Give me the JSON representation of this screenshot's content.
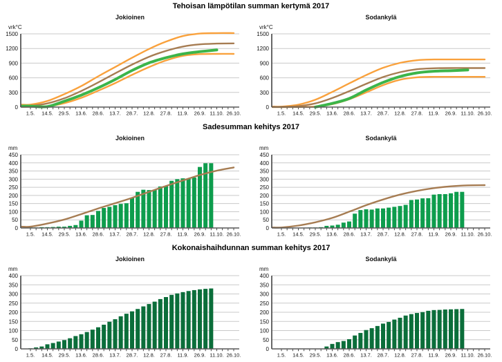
{
  "style": {
    "background": "#ffffff",
    "grid": "#c9c9c9",
    "axis": "#565656",
    "tick": "#333333",
    "text": "#111111",
    "orange": "#f9a13c",
    "brown": "#a67c52",
    "green_2017": "#3cb54a",
    "rain_bar": "#0e9d4d",
    "evaporation_bar": "#0b6e3a"
  },
  "chart_data": [
    {
      "type": "line",
      "title": "Tehoisan lämpötilan summan kertymä 2017",
      "unit": "vrk°C",
      "ylim": [
        0,
        1500
      ],
      "ytick_step": 300,
      "grid": true,
      "legend": "none",
      "x_tick_labels": [
        "1.5.",
        "14.5.",
        "29.5.",
        "13.6.",
        "28.6.",
        "13.7.",
        "28.7.",
        "12.8.",
        "27.8.",
        "11.9.",
        "26.9.",
        "11.10.",
        "26.10."
      ],
      "panels": [
        {
          "station": "Jokioinen",
          "series": [
            {
              "name": "maximum",
              "color": "#f9a13c",
              "width": 2.4,
              "values": [
                50,
                125,
                265,
                430,
                630,
                820,
                1010,
                1190,
                1340,
                1455,
                1505,
                1515,
                1515
              ]
            },
            {
              "name": "mean",
              "color": "#a67c52",
              "width": 2.4,
              "values": [
                25,
                75,
                180,
                330,
                505,
                690,
                870,
                1030,
                1150,
                1240,
                1285,
                1300,
                1305
              ]
            },
            {
              "name": "minimum",
              "color": "#f9a13c",
              "width": 2.4,
              "values": [
                5,
                15,
                80,
                190,
                335,
                490,
                660,
                820,
                955,
                1050,
                1085,
                1090,
                1090
              ]
            },
            {
              "name": "year-2017",
              "color": "#3cb54a",
              "width": 4,
              "values": [
                20,
                10,
                120,
                245,
                395,
                565,
                750,
                905,
                1010,
                1090,
                1135,
                1170,
                null
              ]
            }
          ]
        },
        {
          "station": "Sodankylä",
          "series": [
            {
              "name": "maximum",
              "color": "#f9a13c",
              "width": 2.4,
              "values": [
                10,
                50,
                150,
                310,
                485,
                655,
                805,
                905,
                960,
                975,
                975,
                975,
                975
              ]
            },
            {
              "name": "mean",
              "color": "#a67c52",
              "width": 2.4,
              "values": [
                5,
                20,
                75,
                185,
                325,
                475,
                615,
                715,
                775,
                795,
                800,
                800,
                800
              ]
            },
            {
              "name": "minimum",
              "color": "#f9a13c",
              "width": 2.4,
              "values": [
                0,
                2,
                10,
                60,
                160,
                300,
                450,
                560,
                610,
                620,
                620,
                620,
                620
              ]
            },
            {
              "name": "year-2017",
              "color": "#3cb54a",
              "width": 4,
              "values": [
                null,
                null,
                0,
                75,
                175,
                350,
                505,
                625,
                700,
                735,
                745,
                760,
                null
              ]
            }
          ]
        }
      ]
    },
    {
      "type": "bar-line",
      "title": "Sadesumman kehitys 2017",
      "unit": "mm",
      "ylim": [
        0,
        450
      ],
      "ytick_step": 50,
      "grid": true,
      "legend": "none",
      "bar_interval_days": 5,
      "x_tick_labels": [
        "1.5.",
        "14.5.",
        "29.5.",
        "13.6.",
        "28.6.",
        "13.7.",
        "28.7.",
        "12.8.",
        "27.8.",
        "11.9.",
        "26.9.",
        "11.10.",
        "26.10."
      ],
      "panels": [
        {
          "station": "Jokioinen",
          "bars": {
            "name": "rain-sum-2017",
            "color": "#0e9d4d",
            "values": [
              3,
              3,
              5,
              5,
              6,
              8,
              8,
              13,
              18,
              45,
              78,
              80,
              105,
              123,
              130,
              140,
              148,
              152,
              185,
              222,
              235,
              233,
              235,
              255,
              258,
              290,
              300,
              305,
              303,
              310,
              375,
              398,
              398
            ]
          },
          "line": {
            "name": "mean",
            "color": "#a67c52",
            "width": 2.4,
            "values": [
              8,
              27,
              52,
              85,
              120,
              152,
              185,
              222,
              258,
              292,
              325,
              352,
              372
            ]
          }
        },
        {
          "station": "Sodankylä",
          "bars": {
            "name": "rain-sum-2017",
            "color": "#0e9d4d",
            "values": [
              2,
              2,
              2,
              2,
              2,
              3,
              3,
              5,
              13,
              15,
              20,
              33,
              40,
              88,
              110,
              115,
              113,
              120,
              120,
              125,
              130,
              135,
              142,
              172,
              175,
              182,
              183,
              205,
              208,
              208,
              213,
              222,
              222
            ]
          },
          "line": {
            "name": "mean",
            "color": "#a67c52",
            "width": 2.4,
            "values": [
              3,
              15,
              35,
              62,
              100,
              140,
              175,
              205,
              228,
              245,
              256,
              262,
              263
            ]
          }
        }
      ]
    },
    {
      "type": "bar",
      "title": "Kokonaishaihdunnan summan kehitys 2017",
      "unit": "mm",
      "ylim": [
        0,
        400
      ],
      "ytick_step": 50,
      "grid": true,
      "legend": "none",
      "bar_interval_days": 5,
      "x_tick_labels": [
        "1.5.",
        "14.5.",
        "29.5.",
        "13.6.",
        "28.6.",
        "13.7.",
        "28.7.",
        "12.8.",
        "27.8.",
        "11.9.",
        "26.9.",
        "11.10.",
        "26.10."
      ],
      "panels": [
        {
          "station": "Jokioinen",
          "bars": {
            "name": "evaporation-sum-2017",
            "color": "#0b6e3a",
            "values": [
              3,
              8,
              13,
              25,
              32,
              40,
              48,
              58,
              70,
              80,
              92,
              105,
              118,
              132,
              148,
              162,
              178,
              192,
              205,
              218,
              232,
              245,
              258,
              272,
              283,
              295,
              303,
              310,
              316,
              321,
              325,
              328,
              330
            ]
          }
        },
        {
          "station": "Sodankylä",
          "bars": {
            "name": "evaporation-sum-2017",
            "color": "#0b6e3a",
            "values": [
              0,
              0,
              0,
              0,
              0,
              0,
              0,
              0,
              13,
              27,
              37,
              43,
              53,
              73,
              87,
              103,
              113,
              125,
              138,
              147,
              160,
              170,
              182,
              190,
              196,
              201,
              208,
              212,
              213,
              215,
              216,
              217,
              218
            ]
          }
        }
      ]
    }
  ]
}
